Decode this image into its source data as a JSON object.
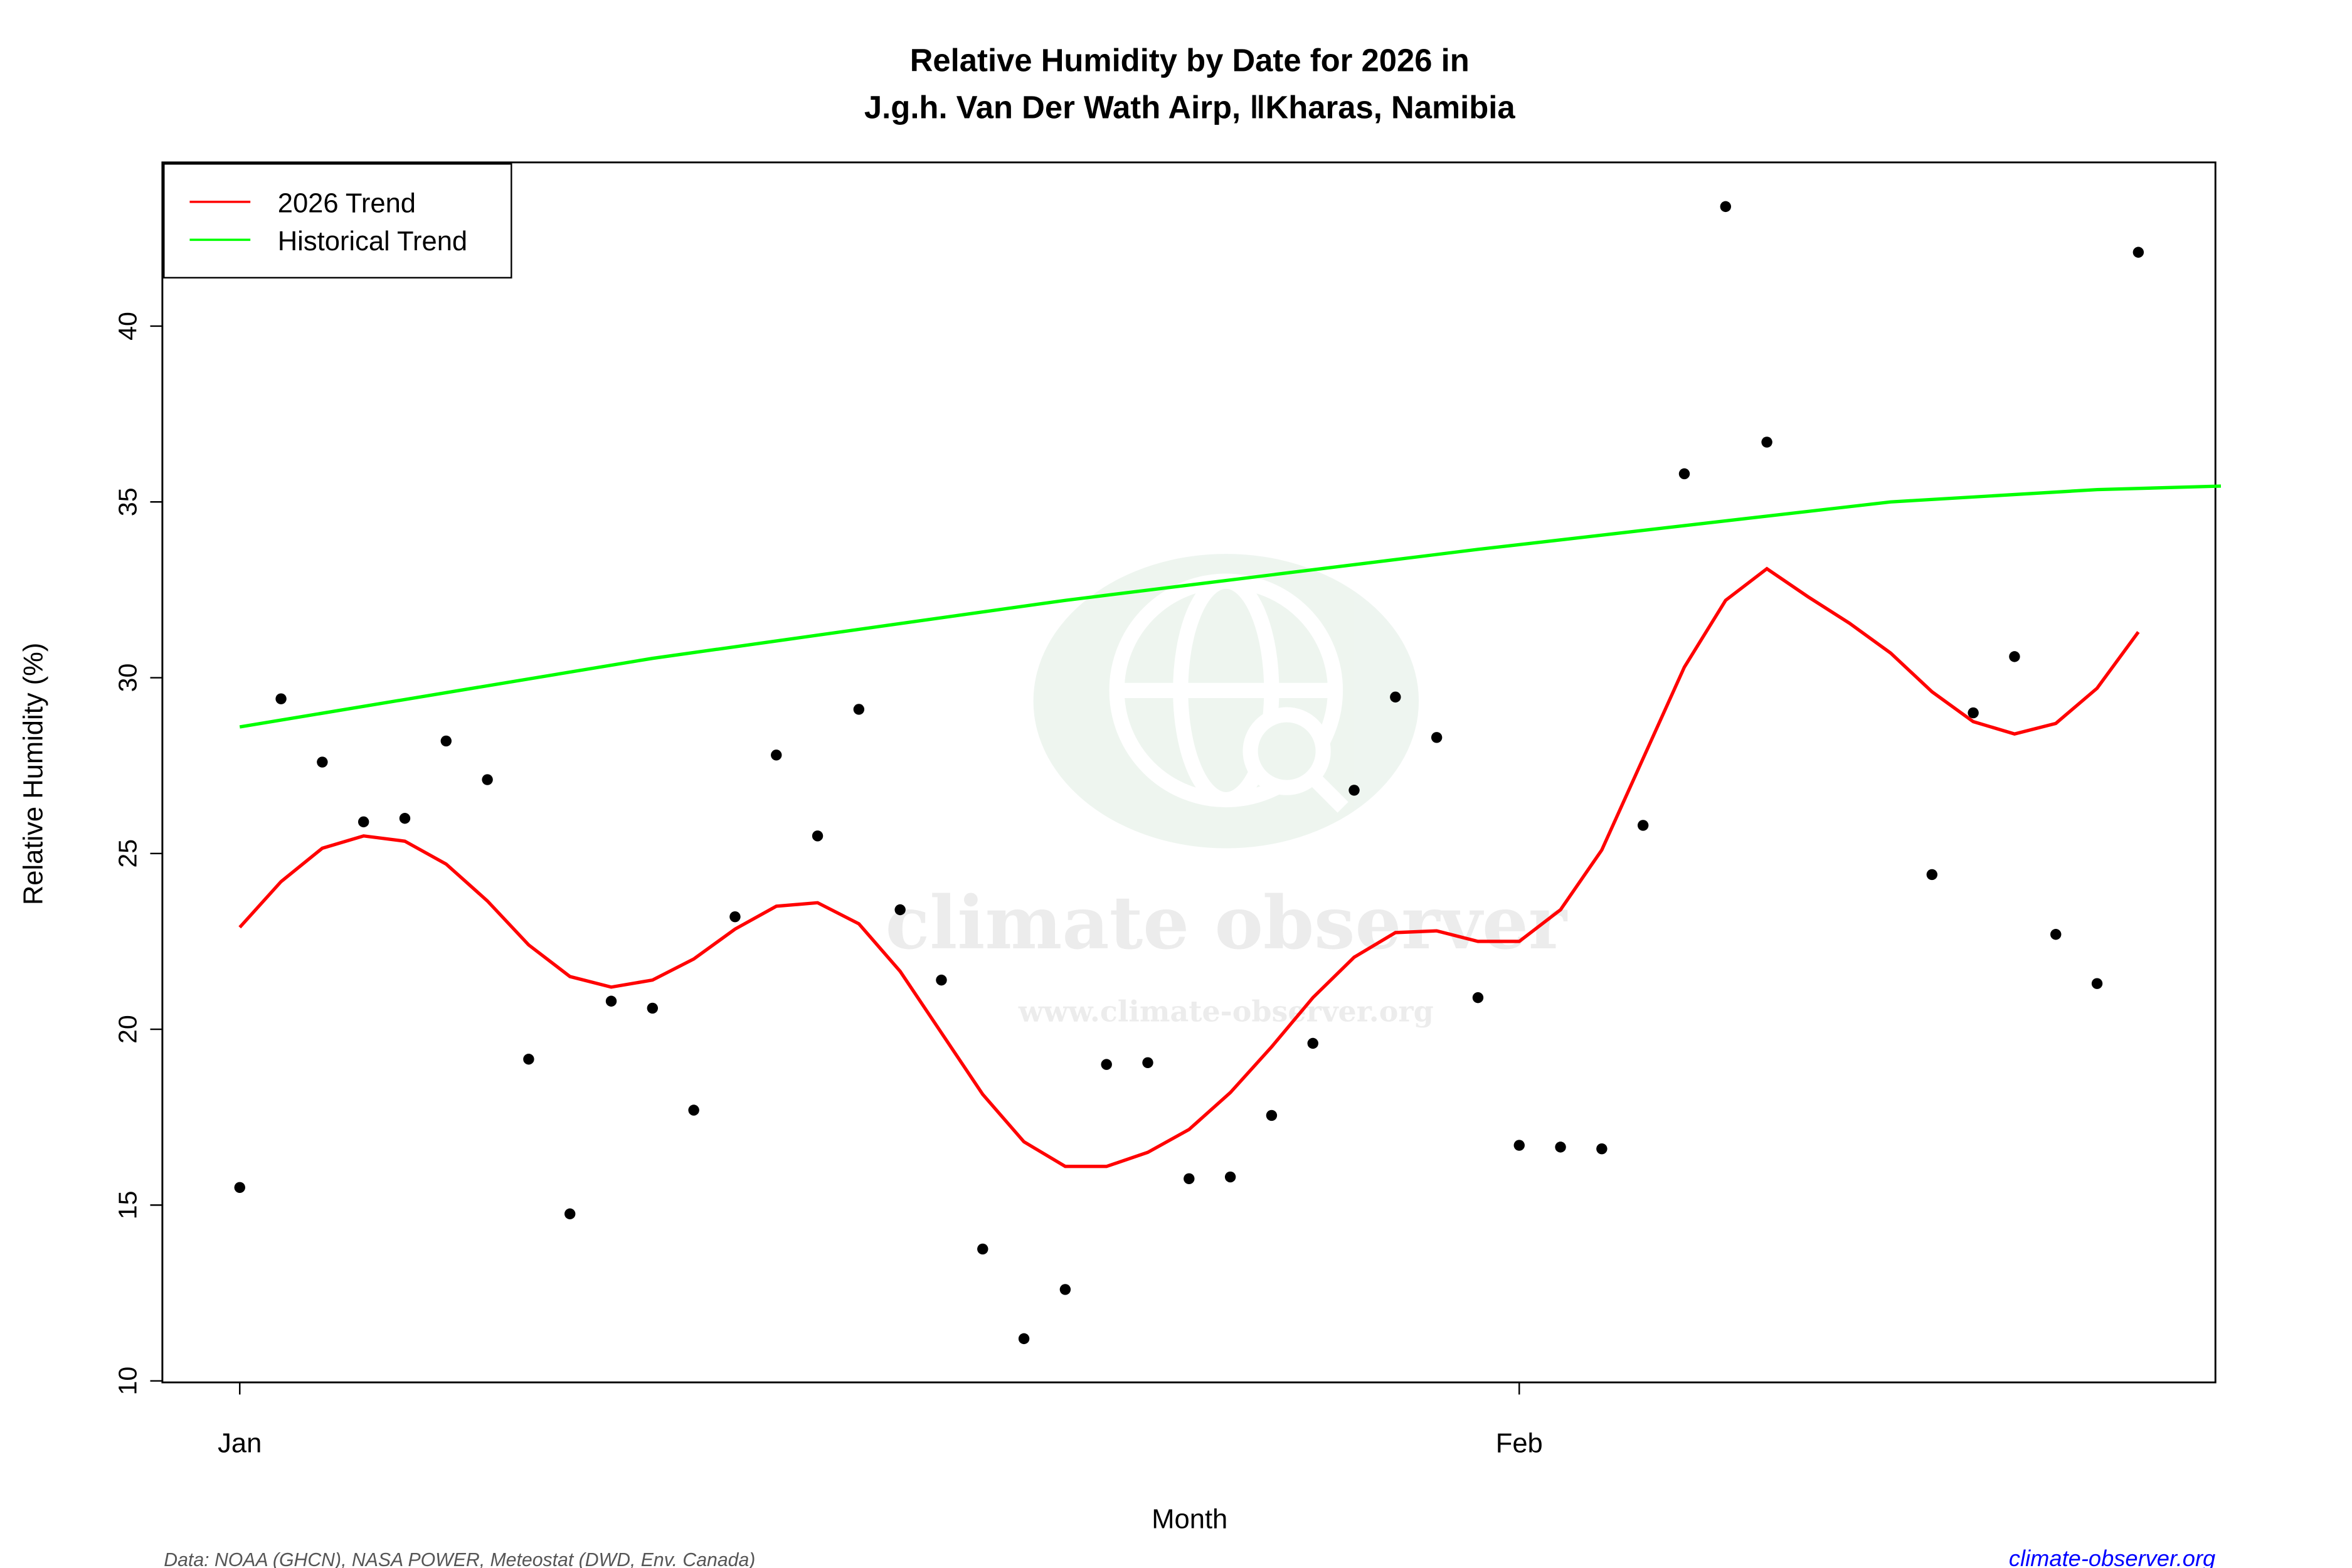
{
  "chart_data": {
    "type": "scatter",
    "title": "Relative Humidity by Date for 2026 in",
    "subtitle": "J.g.h. Van Der Wath Airp, ǁKharas, Namibia",
    "xlabel": "Month",
    "ylabel": "Relative Humidity (%)",
    "x_tick_labels": [
      {
        "date": "2026-01-01",
        "label": "Jan"
      },
      {
        "date": "2026-02-01",
        "label": "Feb"
      }
    ],
    "y_ticks": [
      10,
      15,
      20,
      25,
      30,
      35,
      40
    ],
    "ylim": [
      10,
      44
    ],
    "xlim": [
      "2025-12-30",
      "2026-02-18"
    ],
    "grid": false,
    "legend_placement": "top-left",
    "legend": [
      {
        "name": "2026 Trend",
        "color": "#ff0000"
      },
      {
        "name": "Historical Trend",
        "color": "#00ff00"
      }
    ],
    "points": {
      "color": "#000000",
      "data": [
        [
          "2026-01-01",
          15.5
        ],
        [
          "2026-01-02",
          29.4
        ],
        [
          "2026-01-03",
          27.6
        ],
        [
          "2026-01-04",
          25.9
        ],
        [
          "2026-01-05",
          26.0
        ],
        [
          "2026-01-06",
          28.2
        ],
        [
          "2026-01-07",
          27.1
        ],
        [
          "2026-01-08",
          19.15
        ],
        [
          "2026-01-09",
          14.75
        ],
        [
          "2026-01-10",
          20.8
        ],
        [
          "2026-01-11",
          20.6
        ],
        [
          "2026-01-12",
          17.7
        ],
        [
          "2026-01-13",
          23.2
        ],
        [
          "2026-01-14",
          27.8
        ],
        [
          "2026-01-15",
          25.5
        ],
        [
          "2026-01-16",
          29.1
        ],
        [
          "2026-01-17",
          23.4
        ],
        [
          "2026-01-18",
          21.4
        ],
        [
          "2026-01-19",
          13.75
        ],
        [
          "2026-01-20",
          11.2
        ],
        [
          "2026-01-21",
          12.6
        ],
        [
          "2026-01-22",
          19.0
        ],
        [
          "2026-01-23",
          19.05
        ],
        [
          "2026-01-24",
          15.75
        ],
        [
          "2026-01-25",
          15.8
        ],
        [
          "2026-01-26",
          17.55
        ],
        [
          "2026-01-27",
          19.6
        ],
        [
          "2026-01-28",
          26.8
        ],
        [
          "2026-01-29",
          29.45
        ],
        [
          "2026-01-30",
          28.3
        ],
        [
          "2026-01-31",
          20.9
        ],
        [
          "2026-02-01",
          16.7
        ],
        [
          "2026-02-02",
          16.65
        ],
        [
          "2026-02-03",
          16.6
        ],
        [
          "2026-02-04",
          25.8
        ],
        [
          "2026-02-05",
          35.8
        ],
        [
          "2026-02-06",
          43.4
        ],
        [
          "2026-02-07",
          36.7
        ],
        [
          "2026-02-11",
          24.4
        ],
        [
          "2026-02-12",
          29.0
        ],
        [
          "2026-02-13",
          30.6
        ],
        [
          "2026-02-14",
          22.7
        ],
        [
          "2026-02-15",
          21.3
        ],
        [
          "2026-02-16",
          42.1
        ]
      ]
    },
    "series": [
      {
        "name": "2026 Trend",
        "color": "#ff0000",
        "start": "2026-01-01",
        "values": [
          22.9,
          24.2,
          25.15,
          25.5,
          25.35,
          24.7,
          23.65,
          22.4,
          21.5,
          21.2,
          21.4,
          22.0,
          22.85,
          23.5,
          23.6,
          23.0,
          21.65,
          19.9,
          18.15,
          16.8,
          16.1,
          16.1,
          16.5,
          17.15,
          18.2,
          19.5,
          20.9,
          22.05,
          22.75,
          22.8,
          22.5,
          22.5,
          23.4,
          25.1,
          27.7,
          30.3,
          32.2,
          33.1,
          32.3,
          31.55,
          30.7,
          29.6,
          28.75,
          28.4,
          28.7,
          29.7,
          31.3
        ]
      },
      {
        "name": "Historical Trend",
        "color": "#00ff00",
        "data": [
          [
            "2026-01-01",
            28.6
          ],
          [
            "2026-01-11",
            30.55
          ],
          [
            "2026-01-21",
            32.2
          ],
          [
            "2026-01-31",
            33.65
          ],
          [
            "2026-02-10",
            35.0
          ],
          [
            "2026-02-15",
            35.35
          ],
          [
            "2026-02-18",
            35.45
          ]
        ]
      }
    ]
  },
  "watermark": {
    "name": "climate observer",
    "url": "www.climate-observer.org"
  },
  "footer": {
    "source": "Data: NOAA (GHCN), NASA POWER, Meteostat (DWD, Env. Canada)",
    "site": "climate-observer.org",
    "site_color": "#0000ff"
  }
}
